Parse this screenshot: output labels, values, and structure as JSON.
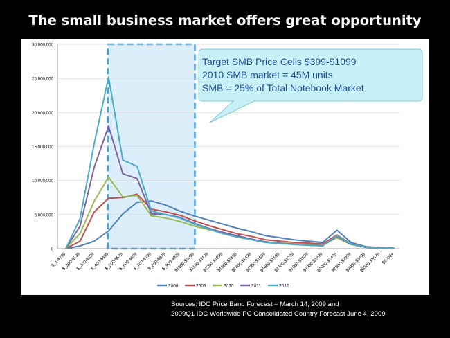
{
  "slide": {
    "title": "The small business market offers great opportunity",
    "sources": [
      "Sources: IDC Price Band Forecast – March 14, 2009 and",
      "2009Q1 IDC Worldwide PC Consolidated Country Forecast June 4, 2009"
    ]
  },
  "callout": {
    "lines": [
      "Target SMB Price Cells $399-$1099",
      "2010 SMB market = 45M units",
      "SMB = 25% of Total Notebook Market"
    ],
    "fill": "#c8f0f7",
    "stroke": "#7fc8d6",
    "text_color": "#1f4e9a"
  },
  "highlight": {
    "from_category": "$_400-$499",
    "to_category": "$1000-$1099",
    "fill": "#dbeefa",
    "stroke": "#4a9ed8"
  },
  "chart_data": {
    "type": "line",
    "title": "",
    "xlabel": "",
    "ylabel": "",
    "ylim": [
      0,
      30000000
    ],
    "yticks": [
      0,
      5000000,
      10000000,
      15000000,
      20000000,
      25000000,
      30000000
    ],
    "ytick_labels": [
      "0",
      "5,000,000",
      "10,000,000",
      "15,000,000",
      "20,000,000",
      "25,000,000",
      "30,000,000"
    ],
    "grid": true,
    "legend_position": "bottom",
    "categories": [
      "$_1-$199",
      "$_200-$299",
      "$_300-$399",
      "$_400-$499",
      "$_500-$599",
      "$_600-$699",
      "$_700-$799",
      "$_800-$899",
      "$_900-$999",
      "$1000-$1099",
      "$1100-$1199",
      "$1200-$1299",
      "$1300-$1399",
      "$1400-$1499",
      "$1500-$1599",
      "$1600-$1699",
      "$1700-$1799",
      "$1800-$1899",
      "$1900-$1999",
      "$2000-$2499",
      "$2500-$2999",
      "$3000-$3499",
      "$3500-$3999",
      "$4000+"
    ],
    "series": [
      {
        "name": "2008",
        "color": "#4f81bd",
        "values": [
          0,
          400000,
          1100000,
          2600000,
          5100000,
          6800000,
          7000000,
          6400000,
          5500000,
          4800000,
          4200000,
          3600000,
          3000000,
          2500000,
          1900000,
          1600000,
          1300000,
          1100000,
          900000,
          2700000,
          900000,
          300000,
          150000,
          80000
        ]
      },
      {
        "name": "2009",
        "color": "#c0504d",
        "values": [
          0,
          1100000,
          5400000,
          7400000,
          7500000,
          8000000,
          5800000,
          5400000,
          4900000,
          4100000,
          3400000,
          2800000,
          2200000,
          1800000,
          1300000,
          1100000,
          900000,
          800000,
          700000,
          2000000,
          700000,
          250000,
          120000,
          60000
        ]
      },
      {
        "name": "2010",
        "color": "#9bbb59",
        "values": [
          0,
          2200000,
          7000000,
          10500000,
          7600000,
          7800000,
          4800000,
          4500000,
          4000000,
          3300000,
          2800000,
          2300000,
          1800000,
          1400000,
          1000000,
          850000,
          700000,
          600000,
          500000,
          1600000,
          600000,
          200000,
          100000,
          50000
        ]
      },
      {
        "name": "2011",
        "color": "#8064a2",
        "values": [
          0,
          3300000,
          12000000,
          18000000,
          11000000,
          10300000,
          5100000,
          5000000,
          4600000,
          3700000,
          3000000,
          2400000,
          1900000,
          1400000,
          1000000,
          800000,
          650000,
          550000,
          450000,
          1800000,
          650000,
          200000,
          100000,
          50000
        ]
      },
      {
        "name": "2012",
        "color": "#4bacc6",
        "values": [
          0,
          4400000,
          15500000,
          25200000,
          13000000,
          12100000,
          5500000,
          5000000,
          4500000,
          3600000,
          2900000,
          2200000,
          1700000,
          1300000,
          900000,
          750000,
          600000,
          500000,
          400000,
          1900000,
          700000,
          200000,
          100000,
          50000
        ]
      }
    ]
  }
}
